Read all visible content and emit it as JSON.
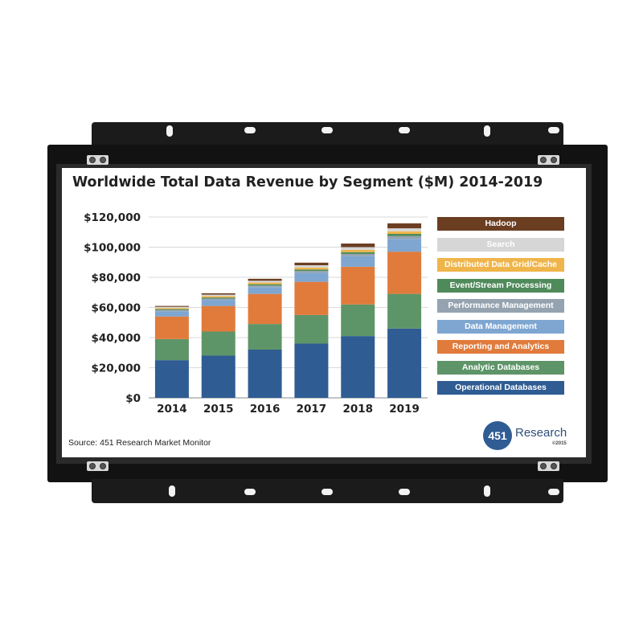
{
  "chart_data": {
    "type": "bar",
    "stacked": true,
    "title": "Worldwide Total Data Revenue by Segment ($M) 2014-2019",
    "source": "Source: 451 Research Market Monitor",
    "categories": [
      "2014",
      "2015",
      "2016",
      "2017",
      "2018",
      "2019"
    ],
    "ylim": [
      0,
      120000
    ],
    "yticks": [
      "$0",
      "$20,000",
      "$40,000",
      "$60,000",
      "$80,000",
      "$100,000",
      "$120,000"
    ],
    "ytick_values": [
      0,
      20000,
      40000,
      60000,
      80000,
      100000,
      120000
    ],
    "grid": true,
    "legend_position": "right",
    "series": [
      {
        "name": "Operational Databases",
        "color": "#2f5c93",
        "values": [
          25000,
          28000,
          32000,
          36000,
          41000,
          46000
        ]
      },
      {
        "name": "Analytic Databases",
        "color": "#5e9568",
        "values": [
          14000,
          16000,
          17000,
          19000,
          21000,
          23000
        ]
      },
      {
        "name": "Reporting and Analytics",
        "color": "#e07b3c",
        "values": [
          15000,
          17000,
          20000,
          22000,
          25000,
          28000
        ]
      },
      {
        "name": "Data Management",
        "color": "#7ea6d1",
        "values": [
          3500,
          4000,
          4500,
          6000,
          7000,
          8500
        ]
      },
      {
        "name": "Performance Management",
        "color": "#95a3b1",
        "values": [
          800,
          900,
          1000,
          1200,
          1500,
          1800
        ]
      },
      {
        "name": "Event/Stream Processing",
        "color": "#4f8a5b",
        "values": [
          600,
          700,
          900,
          1000,
          1200,
          1500
        ]
      },
      {
        "name": "Distributed Data Grid/Cache",
        "color": "#f0b54a",
        "values": [
          700,
          900,
          1100,
          1300,
          1500,
          1700
        ]
      },
      {
        "name": "Search",
        "color": "#d6d6d6",
        "values": [
          800,
          1000,
          1200,
          1500,
          1800,
          2000
        ]
      },
      {
        "name": "Hadoop",
        "color": "#6b3e22",
        "values": [
          600,
          900,
          1300,
          1700,
          2400,
          3300
        ]
      }
    ]
  },
  "legend_order": [
    8,
    7,
    6,
    5,
    4,
    3,
    2,
    1,
    0
  ],
  "logo": {
    "number": "451",
    "name": "Research",
    "copyright": "©2015"
  }
}
